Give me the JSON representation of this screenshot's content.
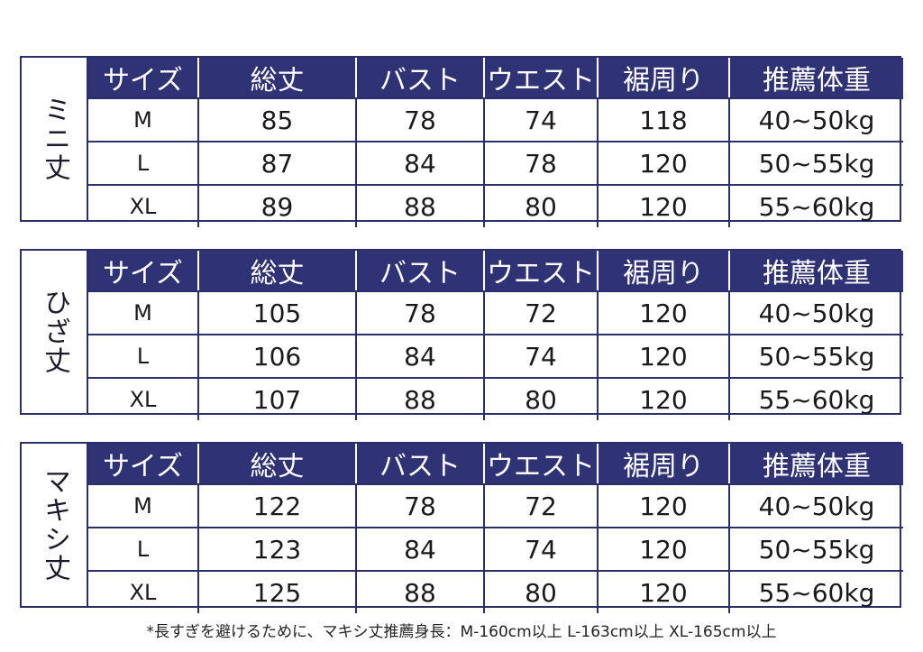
{
  "headers": [
    "サイズ",
    "総丈",
    "バスト",
    "ウエスト",
    "裾周り",
    "推薦体重"
  ],
  "tables": [
    {
      "label": "ミニ丈",
      "rows": [
        [
          "M",
          "85",
          "78",
          "74",
          "118",
          "40~50kg"
        ],
        [
          "L",
          "87",
          "84",
          "78",
          "120",
          "50~55kg"
        ],
        [
          "XL",
          "89",
          "88",
          "80",
          "120",
          "55~60kg"
        ]
      ]
    },
    {
      "label": "ひざ丈",
      "rows": [
        [
          "M",
          "105",
          "78",
          "72",
          "120",
          "40~50kg"
        ],
        [
          "L",
          "106",
          "84",
          "74",
          "120",
          "50~55kg"
        ],
        [
          "XL",
          "107",
          "88",
          "80",
          "120",
          "55~60kg"
        ]
      ]
    },
    {
      "label": "マキシ丈",
      "rows": [
        [
          "M",
          "122",
          "78",
          "72",
          "120",
          "40~50kg"
        ],
        [
          "L",
          "123",
          "84",
          "74",
          "120",
          "50~55kg"
        ],
        [
          "XL",
          "125",
          "88",
          "80",
          "120",
          "55~60kg"
        ]
      ]
    }
  ],
  "note": "*長すぎを避けるために、マキシ丈推薦身長：M-160cm以上 L-163cm以上 XL-165cm以上",
  "colors": {
    "header_bg": "#2f3375",
    "border": "#2a2f6b"
  }
}
